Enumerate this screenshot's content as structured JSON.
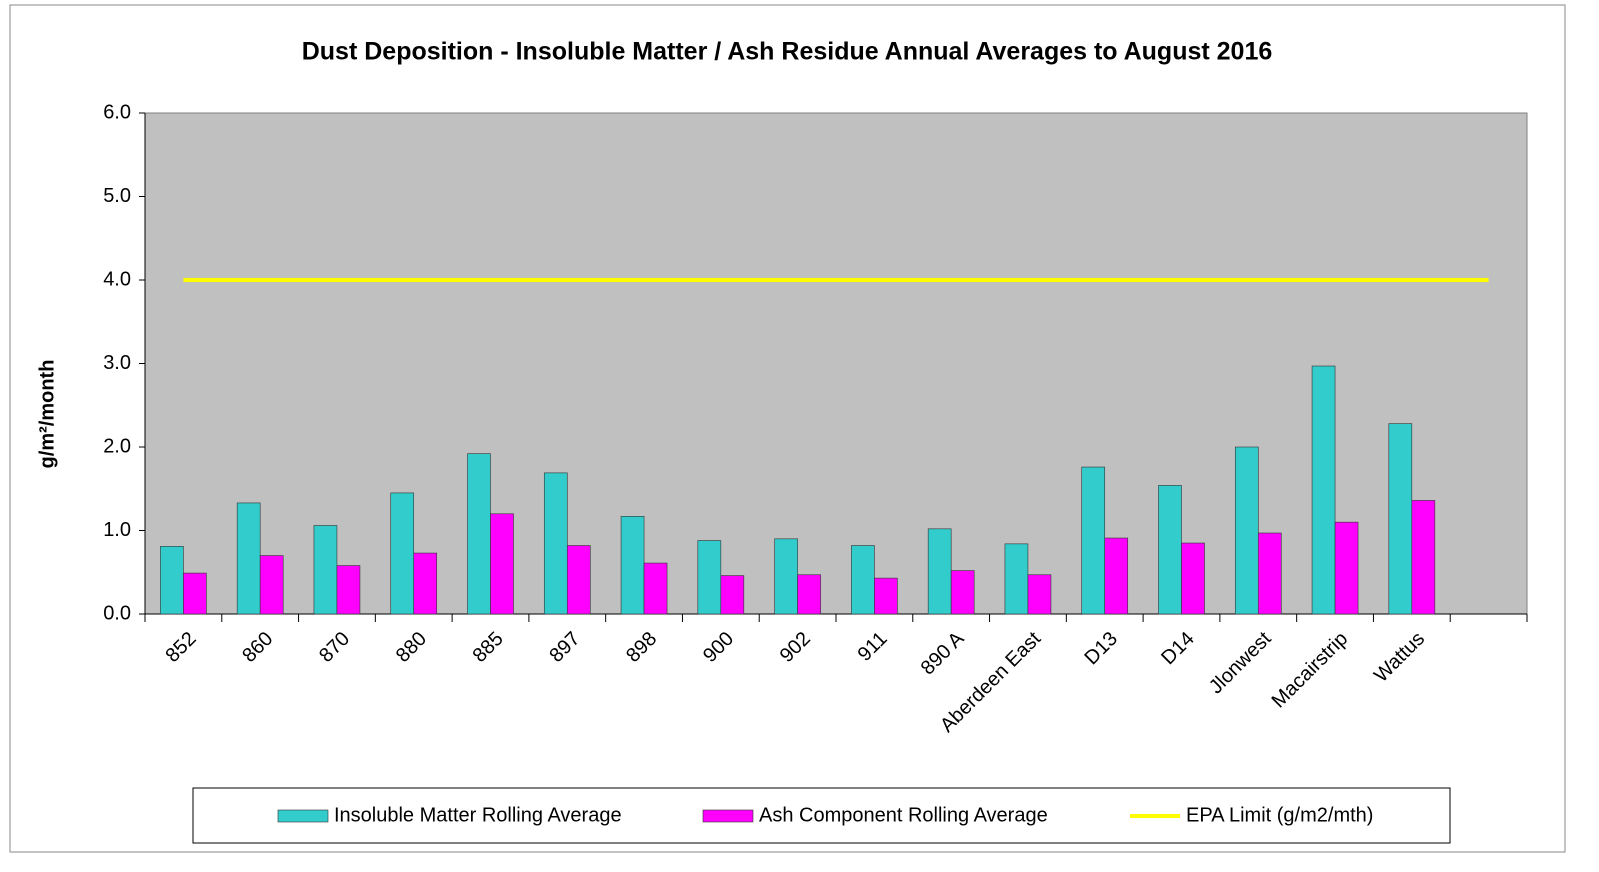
{
  "chart_data": {
    "type": "bar",
    "title": "Dust Deposition - Insoluble Matter / Ash Residue Annual Averages to  August 2016",
    "y_label": "g/m²/month",
    "categories": [
      "852",
      "860",
      "870",
      "880",
      "885",
      "897",
      "898",
      "900",
      "902",
      "911",
      "890 A",
      "Aberdeen East",
      "D13",
      "D14",
      "Jlonwest",
      "Macairstrip",
      "Wattus",
      null
    ],
    "series": [
      {
        "name": "Insoluble Matter Rolling Average",
        "color": "#33cccc",
        "values": [
          0.81,
          1.33,
          1.06,
          1.45,
          1.92,
          1.69,
          1.17,
          0.88,
          0.9,
          0.82,
          1.02,
          0.84,
          1.76,
          1.54,
          2.0,
          2.97,
          2.28,
          null
        ]
      },
      {
        "name": "Ash Component Rolling Average",
        "color": "#ff00ff",
        "values": [
          0.49,
          0.7,
          0.58,
          0.73,
          1.2,
          0.82,
          0.61,
          0.46,
          0.47,
          0.43,
          0.52,
          0.47,
          0.91,
          0.85,
          0.97,
          1.1,
          1.36,
          null
        ]
      },
      {
        "name": "EPA Limit (g/m2/mth)",
        "color": "#ffff00",
        "type": "line",
        "values": [
          4,
          4,
          4,
          4,
          4,
          4,
          4,
          4,
          4,
          4,
          4,
          4,
          4,
          4,
          4,
          4,
          4,
          4
        ]
      }
    ],
    "ylim": [
      0,
      6
    ],
    "yticks": [
      {
        "value": 0,
        "label": "0.0"
      },
      {
        "value": 1,
        "label": "1.0"
      },
      {
        "value": 2,
        "label": "2.0"
      },
      {
        "value": 3,
        "label": "3.0"
      },
      {
        "value": 4,
        "label": "4.0"
      },
      {
        "value": 5,
        "label": "5.0"
      },
      {
        "value": 6,
        "label": "6.0"
      }
    ],
    "plot_background": "#c0c0c0"
  }
}
